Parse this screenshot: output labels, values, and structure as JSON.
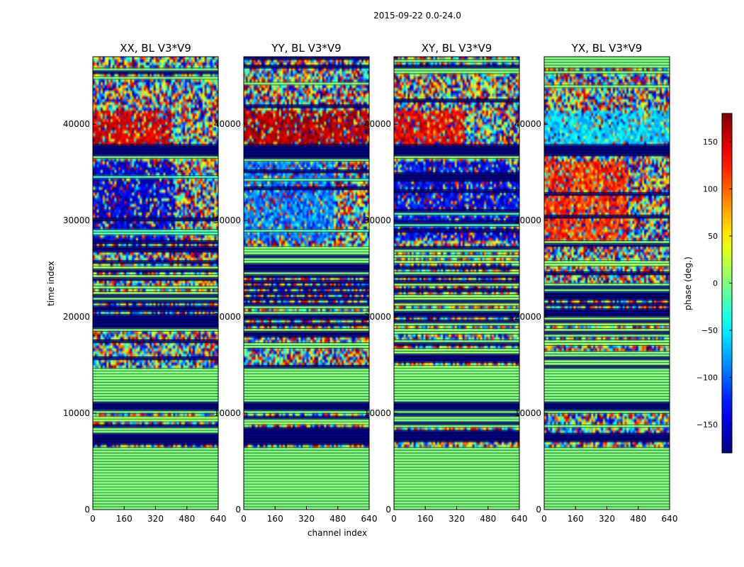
{
  "chart_data": {
    "type": "heatmap",
    "suptitle": "2015-09-22 0.0-24.0",
    "xlabel": "channel index",
    "ylabel": "time index",
    "xlim": [
      0,
      640
    ],
    "ylim": [
      0,
      47000
    ],
    "xticks": [
      0,
      160,
      320,
      480,
      640
    ],
    "yticks": [
      0,
      10000,
      20000,
      30000,
      40000
    ],
    "colorbar": {
      "label": "phase (deg.)",
      "range": [
        -180,
        180
      ],
      "ticks": [
        -150,
        -100,
        -50,
        0,
        50,
        100,
        150
      ],
      "colormap": "jet"
    },
    "panels": [
      {
        "title": "XX, BL V3*V9",
        "seed": 11,
        "dense_bias": -150,
        "bias_ch_max": 420,
        "top_bias": 150,
        "top_ch_max": 400
      },
      {
        "title": "YY, BL V3*V9",
        "seed": 23,
        "dense_bias": -95,
        "bias_ch_max": 460,
        "top_bias": 165,
        "top_ch_max": 640
      },
      {
        "title": "XY, BL V3*V9",
        "seed": 37,
        "dense_bias": -140,
        "bias_ch_max": 640,
        "top_bias": 140,
        "top_ch_max": 360
      },
      {
        "title": "YX, BL V3*V9",
        "seed": 53,
        "dense_bias": 120,
        "bias_ch_max": 420,
        "top_bias": -60,
        "top_ch_max": 640
      }
    ],
    "time_segments": [
      {
        "from": 0,
        "to": 800,
        "kind": "const",
        "phase": 0
      },
      {
        "from": 800,
        "to": 1000,
        "kind": "noise"
      },
      {
        "from": 1000,
        "to": 6400,
        "kind": "const",
        "phase": 0
      },
      {
        "from": 6400,
        "to": 7000,
        "kind": "noise"
      },
      {
        "from": 7000,
        "to": 7800,
        "kind": "const",
        "phase": -180
      },
      {
        "from": 7800,
        "to": 10000,
        "kind": "striped"
      },
      {
        "from": 10000,
        "to": 10400,
        "kind": "const",
        "phase": 0
      },
      {
        "from": 10400,
        "to": 11200,
        "kind": "const",
        "phase": -180
      },
      {
        "from": 11200,
        "to": 14600,
        "kind": "const",
        "phase": 0
      },
      {
        "from": 14600,
        "to": 28000,
        "kind": "striped"
      },
      {
        "from": 28000,
        "to": 36200,
        "kind": "dense"
      },
      {
        "from": 36200,
        "to": 36700,
        "kind": "striped"
      },
      {
        "from": 36700,
        "to": 38000,
        "kind": "const",
        "phase": -180
      },
      {
        "from": 38000,
        "to": 41500,
        "kind": "topbias"
      },
      {
        "from": 41500,
        "to": 47000,
        "kind": "noise"
      }
    ]
  }
}
